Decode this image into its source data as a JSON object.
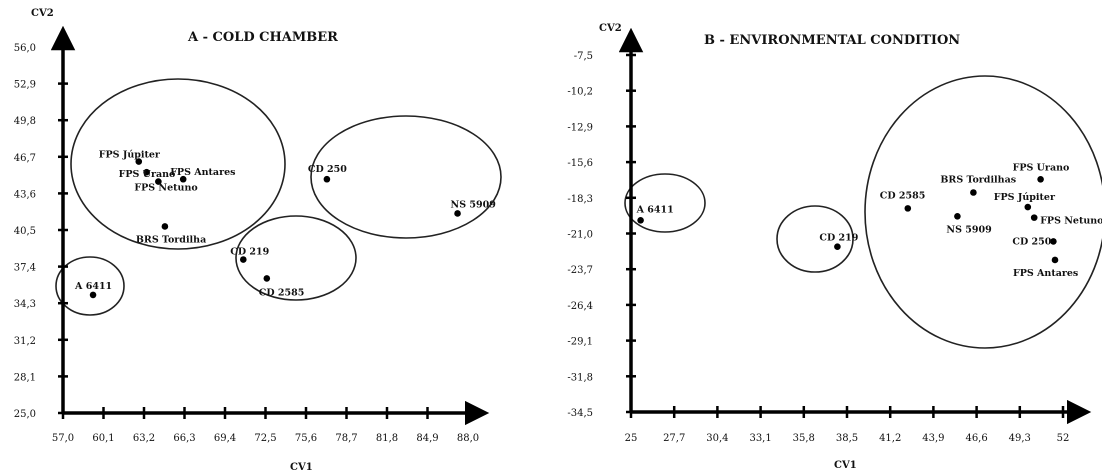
{
  "chart_data": [
    {
      "type": "scatter",
      "title": "A - COLD CHAMBER",
      "xlabel": "CV1",
      "ylabel": "CV2",
      "xlim": [
        57.0,
        88.0
      ],
      "ylim": [
        25.0,
        56.0
      ],
      "x_ticks": [
        "57,0",
        "60,1",
        "63,2",
        "66,3",
        "69,4",
        "72,5",
        "75,6",
        "78,7",
        "81,8",
        "84,9",
        "88,0"
      ],
      "y_ticks": [
        "25,0",
        "28,1",
        "31,2",
        "34,3",
        "37,4",
        "40,5",
        "43,6",
        "46,7",
        "49,8",
        "52,9",
        "56,0"
      ],
      "points": [
        {
          "label": "FPS Júpiter",
          "x": 62.8,
          "y": 46.3
        },
        {
          "label": "FPS Urano",
          "x": 63.4,
          "y": 45.4
        },
        {
          "label": "FPS Netuno",
          "x": 64.3,
          "y": 44.6
        },
        {
          "label": "FPS Antares",
          "x": 66.2,
          "y": 44.8
        },
        {
          "label": "BRS Tordilha",
          "x": 64.8,
          "y": 40.8
        },
        {
          "label": "CD 250",
          "x": 77.2,
          "y": 44.8
        },
        {
          "label": "NS 5909",
          "x": 87.2,
          "y": 41.9
        },
        {
          "label": "CD 219",
          "x": 70.8,
          "y": 38.0
        },
        {
          "label": "CD 2585",
          "x": 72.6,
          "y": 36.4
        },
        {
          "label": "A 6411",
          "x": 59.3,
          "y": 35.0
        }
      ],
      "clusters": [
        [
          "FPS Júpiter",
          "FPS Urano",
          "FPS Netuno",
          "FPS Antares",
          "BRS Tordilha"
        ],
        [
          "CD 250",
          "NS 5909"
        ],
        [
          "CD 219",
          "CD 2585"
        ],
        [
          "A 6411"
        ]
      ]
    },
    {
      "type": "scatter",
      "title": "B - ENVIRONMENTAL  CONDITION",
      "xlabel": "CV1",
      "ylabel": "CV2",
      "xlim": [
        25.0,
        52.0
      ],
      "ylim": [
        -34.5,
        -7.5
      ],
      "x_ticks": [
        "25",
        "27,7",
        "30,4",
        "33,1",
        "35,8",
        "38,5",
        "41,2",
        "43,9",
        "46,6",
        "49,3",
        "52"
      ],
      "y_ticks": [
        "-34,5",
        "-31,8",
        "-29,1",
        "-26,4",
        "-23,7",
        "-21,0",
        "-18,3",
        "-15,6",
        "-12,9",
        "-10,2",
        "-7,5"
      ],
      "points": [
        {
          "label": "A 6411",
          "x": 25.6,
          "y": -20.0
        },
        {
          "label": "CD 219",
          "x": 37.9,
          "y": -22.0
        },
        {
          "label": "CD 2585",
          "x": 42.3,
          "y": -19.1
        },
        {
          "label": "BRS Tordilhas",
          "x": 46.4,
          "y": -17.9
        },
        {
          "label": "NS 5909",
          "x": 45.4,
          "y": -19.7
        },
        {
          "label": "FPS Urano",
          "x": 50.6,
          "y": -16.9
        },
        {
          "label": "FPS Júpiter",
          "x": 49.8,
          "y": -19.0
        },
        {
          "label": "FPS Netuno",
          "x": 50.2,
          "y": -19.8
        },
        {
          "label": "CD 250",
          "x": 51.4,
          "y": -21.6
        },
        {
          "label": "FPS Antares",
          "x": 51.5,
          "y": -23.0
        }
      ],
      "clusters": [
        [
          "A 6411"
        ],
        [
          "CD 219"
        ],
        [
          "CD 2585",
          "BRS Tordilhas",
          "NS 5909",
          "FPS Urano",
          "FPS Júpiter",
          "FPS Netuno",
          "CD 250",
          "FPS Antares"
        ]
      ]
    }
  ]
}
